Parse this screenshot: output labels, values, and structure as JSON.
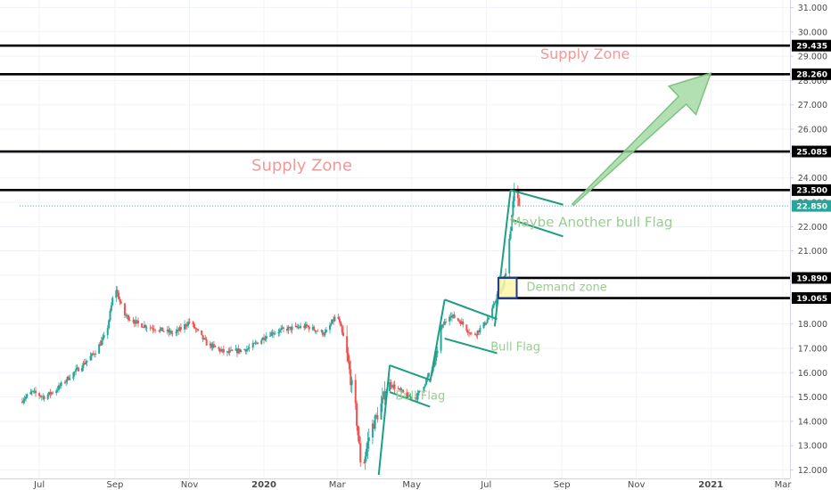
{
  "colors": {
    "up": "#26a69a",
    "down": "#ef5350",
    "grid": "#f0f3fa",
    "axis_line": "#d1d4dc",
    "level_line": "#000000",
    "badge_bg": "#000000",
    "current_badge_bg": "#26a69a",
    "pattern_line": "#1e9e82",
    "arrow_fill": "#9fd8a0",
    "arrow_stroke": "#7cc27e",
    "demand_box_fill": "#fff7a8",
    "demand_box_stroke": "#1f3a93",
    "supply_text": "#ee9a9a",
    "green_text": "#9acd8f"
  },
  "chart_data": {
    "type": "candlestick",
    "ylim": [
      11.8,
      31.2
    ],
    "y_ticks": [
      "31.000",
      "30.000",
      "29.000",
      "28.000",
      "27.000",
      "26.000",
      "25.000",
      "24.000",
      "23.000",
      "22.000",
      "21.000",
      "20.000",
      "19.000",
      "18.000",
      "17.000",
      "16.000",
      "15.000",
      "14.000",
      "13.000",
      "12.000"
    ],
    "x_ticks": [
      {
        "label": "Jul",
        "date": "2019-07-01",
        "bold": false
      },
      {
        "label": "Sep",
        "date": "2019-09-01",
        "bold": false
      },
      {
        "label": "Nov",
        "date": "2019-11-01",
        "bold": false
      },
      {
        "label": "2020",
        "date": "2020-01-01",
        "bold": true
      },
      {
        "label": "Mar",
        "date": "2020-03-01",
        "bold": false
      },
      {
        "label": "May",
        "date": "2020-05-01",
        "bold": false
      },
      {
        "label": "Jul",
        "date": "2020-07-01",
        "bold": false
      },
      {
        "label": "Sep",
        "date": "2020-09-01",
        "bold": false
      },
      {
        "label": "Nov",
        "date": "2020-11-01",
        "bold": false
      },
      {
        "label": "2021",
        "date": "2021-01-01",
        "bold": true
      },
      {
        "label": "Mar",
        "date": "2021-03-01",
        "bold": false
      }
    ],
    "price_path": [
      [
        "2019-06-15",
        14.8
      ],
      [
        "2019-06-25",
        15.2
      ],
      [
        "2019-07-05",
        15.0
      ],
      [
        "2019-07-15",
        15.3
      ],
      [
        "2019-07-25",
        15.8
      ],
      [
        "2019-08-05",
        16.3
      ],
      [
        "2019-08-15",
        16.8
      ],
      [
        "2019-08-25",
        17.6
      ],
      [
        "2019-09-01",
        19.6
      ],
      [
        "2019-09-08",
        18.4
      ],
      [
        "2019-09-20",
        18.0
      ],
      [
        "2019-10-05",
        17.8
      ],
      [
        "2019-10-20",
        17.6
      ],
      [
        "2019-11-01",
        18.1
      ],
      [
        "2019-11-15",
        17.2
      ],
      [
        "2019-12-01",
        16.8
      ],
      [
        "2019-12-20",
        17.0
      ],
      [
        "2020-01-05",
        17.6
      ],
      [
        "2020-01-20",
        17.8
      ],
      [
        "2020-02-05",
        17.9
      ],
      [
        "2020-02-20",
        17.6
      ],
      [
        "2020-03-01",
        18.4
      ],
      [
        "2020-03-08",
        17.0
      ],
      [
        "2020-03-16",
        14.5
      ],
      [
        "2020-03-21",
        11.9
      ],
      [
        "2020-03-28",
        13.6
      ],
      [
        "2020-04-05",
        14.5
      ],
      [
        "2020-04-12",
        15.6
      ],
      [
        "2020-04-20",
        15.3
      ],
      [
        "2020-04-28",
        15.0
      ],
      [
        "2020-05-05",
        15.0
      ],
      [
        "2020-05-12",
        15.6
      ],
      [
        "2020-05-20",
        16.4
      ],
      [
        "2020-05-25",
        17.8
      ],
      [
        "2020-06-01",
        18.4
      ],
      [
        "2020-06-10",
        18.1
      ],
      [
        "2020-06-20",
        17.5
      ],
      [
        "2020-06-28",
        17.9
      ],
      [
        "2020-07-05",
        18.4
      ],
      [
        "2020-07-10",
        19.2
      ],
      [
        "2020-07-15",
        19.5
      ],
      [
        "2020-07-20",
        21.5
      ],
      [
        "2020-07-24",
        23.4
      ],
      [
        "2020-07-28",
        22.9
      ]
    ],
    "levels": [
      {
        "value": 29.435,
        "label": "29.435"
      },
      {
        "value": 28.26,
        "label": "28.260"
      },
      {
        "value": 25.085,
        "label": "25.085"
      },
      {
        "value": 23.5,
        "label": "23.500"
      },
      {
        "value": 19.89,
        "label": "19.890"
      },
      {
        "value": 19.065,
        "label": "19.065"
      }
    ],
    "current_price": {
      "value": 22.85,
      "label": "22.850",
      "line_from": "2019-06-15"
    },
    "annotations": [
      {
        "text": "Supply Zone",
        "date": "2020-09-20",
        "value": 28.9,
        "size": 16,
        "kind": "supply"
      },
      {
        "text": "Supply Zone",
        "date": "2020-02-01",
        "value": 24.3,
        "size": 18,
        "kind": "supply"
      },
      {
        "text": "Maybe Another bull Flag",
        "date": "2020-09-25",
        "value": 22.0,
        "size": 15,
        "kind": "green"
      },
      {
        "text": "Demand zone",
        "date": "2020-09-05",
        "value": 19.35,
        "size": 13,
        "kind": "green"
      },
      {
        "text": "Bull Flag",
        "date": "2020-07-25",
        "value": 16.9,
        "size": 13,
        "kind": "green"
      },
      {
        "text": "Bull Flag",
        "date": "2020-05-08",
        "value": 14.9,
        "size": 13,
        "kind": "green"
      }
    ],
    "pattern_lines": [
      [
        [
          "2020-04-04",
          11.8
        ],
        [
          "2020-04-13",
          16.3
        ]
      ],
      [
        [
          "2020-04-13",
          16.3
        ],
        [
          "2020-05-16",
          15.7
        ]
      ],
      [
        [
          "2020-04-13",
          15.2
        ],
        [
          "2020-05-16",
          14.6
        ]
      ],
      [
        [
          "2020-05-16",
          15.6
        ],
        [
          "2020-05-28",
          19.0
        ]
      ],
      [
        [
          "2020-05-28",
          19.0
        ],
        [
          "2020-07-10",
          18.2
        ]
      ],
      [
        [
          "2020-05-28",
          17.4
        ],
        [
          "2020-07-10",
          16.8
        ]
      ],
      [
        [
          "2020-07-08",
          17.9
        ],
        [
          "2020-07-21",
          23.5
        ]
      ],
      [
        [
          "2020-07-21",
          23.5
        ],
        [
          "2020-09-02",
          22.9
        ]
      ],
      [
        [
          "2020-07-21",
          22.3
        ],
        [
          "2020-09-02",
          21.6
        ]
      ]
    ],
    "demand_box": {
      "x0": "2020-07-11",
      "x1": "2020-07-26",
      "y0": 19.065,
      "y1": 19.89
    },
    "arrow": {
      "from": [
        "2020-09-10",
        22.9
      ],
      "to": [
        "2021-01-01",
        28.3
      ]
    }
  }
}
